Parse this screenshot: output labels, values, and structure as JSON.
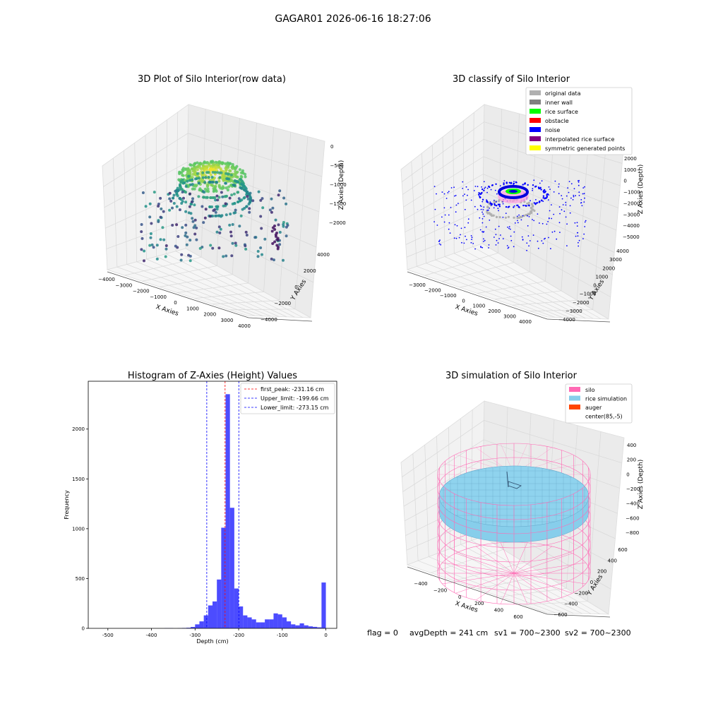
{
  "figure": {
    "suptitle": "GAGAR01 2026-06-16 18:27:06",
    "status": {
      "flag": "flag = 0",
      "avg_depth": "avgDepth = 241 cm",
      "sv1": "sv1 = 700~2300",
      "sv2": "sv2 = 700~2300"
    }
  },
  "chart_data": [
    {
      "type": "scatter3d",
      "title": "3D Plot of Silo Interior(row data)",
      "xlabel": "X Axies",
      "ylabel": "Y Axies",
      "zlabel": "Z Axies (Depth)",
      "x_ticks": [
        "−4000",
        "−3000",
        "−2000",
        "−1000",
        "0",
        "1000",
        "2000",
        "3000",
        "4000"
      ],
      "y_ticks": [
        "−4000",
        "−2000",
        "0",
        "2000",
        "4000"
      ],
      "z_ticks": [
        "0",
        "−500",
        "−1000",
        "−1500",
        "−2000"
      ],
      "colormap": "viridis"
    },
    {
      "type": "scatter3d",
      "title": "3D classify of Silo Interior",
      "xlabel": "X Axies",
      "ylabel": "Y Axies",
      "zlabel": "Z Axies (Depth)",
      "x_ticks": [
        "−3000",
        "−2000",
        "−1000",
        "0",
        "1000",
        "2000",
        "3000",
        "4000"
      ],
      "y_ticks": [
        "−4000",
        "−3000",
        "−2000",
        "−1000",
        "0",
        "1000",
        "2000",
        "3000",
        "4000"
      ],
      "z_ticks": [
        "2000",
        "1000",
        "0",
        "−1000",
        "−2000",
        "−3000",
        "−4000",
        "−5000"
      ],
      "z_top_partial": "00",
      "legend": [
        {
          "label": "original data",
          "color": "#b0b0b0"
        },
        {
          "label": "inner wall",
          "color": "#808080"
        },
        {
          "label": "rice surface",
          "color": "#00ff00"
        },
        {
          "label": "obstacle",
          "color": "#ff0000"
        },
        {
          "label": "noise",
          "color": "#0000ff"
        },
        {
          "label": "interpolated rice surface",
          "color": "#800080"
        },
        {
          "label": "symmetric generated points",
          "color": "#ffff00"
        }
      ]
    },
    {
      "type": "bar",
      "title": "Histogram of Z-Axies (Height) Values",
      "xlabel": "Depth (cm)",
      "ylabel": "Frequency",
      "xlim": [
        -545,
        25
      ],
      "ylim": [
        0,
        2480
      ],
      "x_ticks": [
        -500,
        -400,
        -300,
        -200,
        -100,
        0
      ],
      "y_ticks": [
        0,
        500,
        1000,
        1500,
        2000
      ],
      "bar_color": "#0000ff",
      "bin_width": 10,
      "bins": [
        [
          -370,
          2
        ],
        [
          -360,
          2
        ],
        [
          -340,
          2
        ],
        [
          -330,
          4
        ],
        [
          -320,
          6
        ],
        [
          -310,
          14
        ],
        [
          -300,
          40
        ],
        [
          -290,
          70
        ],
        [
          -280,
          130
        ],
        [
          -270,
          230
        ],
        [
          -260,
          270
        ],
        [
          -250,
          490
        ],
        [
          -240,
          1010
        ],
        [
          -230,
          2350
        ],
        [
          -220,
          1210
        ],
        [
          -210,
          400
        ],
        [
          -200,
          220
        ],
        [
          -190,
          130
        ],
        [
          -180,
          110
        ],
        [
          -170,
          90
        ],
        [
          -160,
          60
        ],
        [
          -150,
          60
        ],
        [
          -140,
          90
        ],
        [
          -130,
          90
        ],
        [
          -120,
          150
        ],
        [
          -110,
          140
        ],
        [
          -100,
          110
        ],
        [
          -90,
          70
        ],
        [
          -80,
          40
        ],
        [
          -70,
          30
        ],
        [
          -60,
          50
        ],
        [
          -50,
          30
        ],
        [
          -40,
          20
        ],
        [
          -30,
          15
        ],
        [
          -20,
          10
        ],
        [
          -10,
          460
        ]
      ],
      "vlines": [
        {
          "label": "first_peak: -231.16 cm",
          "x": -231.16,
          "color": "#ff0000"
        },
        {
          "label": "Upper_limit: -199.66 cm",
          "x": -199.66,
          "color": "#0000ff"
        },
        {
          "label": "Lower_limit: -273.15 cm",
          "x": -273.15,
          "color": "#0000ff"
        }
      ]
    },
    {
      "type": "surface3d",
      "title": "3D simulation of Silo Interior",
      "xlabel": "X Axies",
      "ylabel": "Y Axies",
      "zlabel": "Z Axies (Depth)",
      "x_ticks": [
        "−400",
        "−200",
        "0",
        "200",
        "400",
        "600"
      ],
      "y_ticks": [
        "−600",
        "−400",
        "−200",
        "0",
        "200",
        "400",
        "600"
      ],
      "z_ticks": [
        "400",
        "200",
        "0",
        "−200",
        "−400",
        "−600",
        "−800"
      ],
      "legend": [
        {
          "label": "silo",
          "color": "#ff69b4"
        },
        {
          "label": "rice simulation",
          "color": "#87ceeb"
        },
        {
          "label": "auger",
          "color": "#ff4500"
        },
        {
          "label": "center(85,-5)",
          "color": "#ffffff"
        }
      ]
    }
  ]
}
